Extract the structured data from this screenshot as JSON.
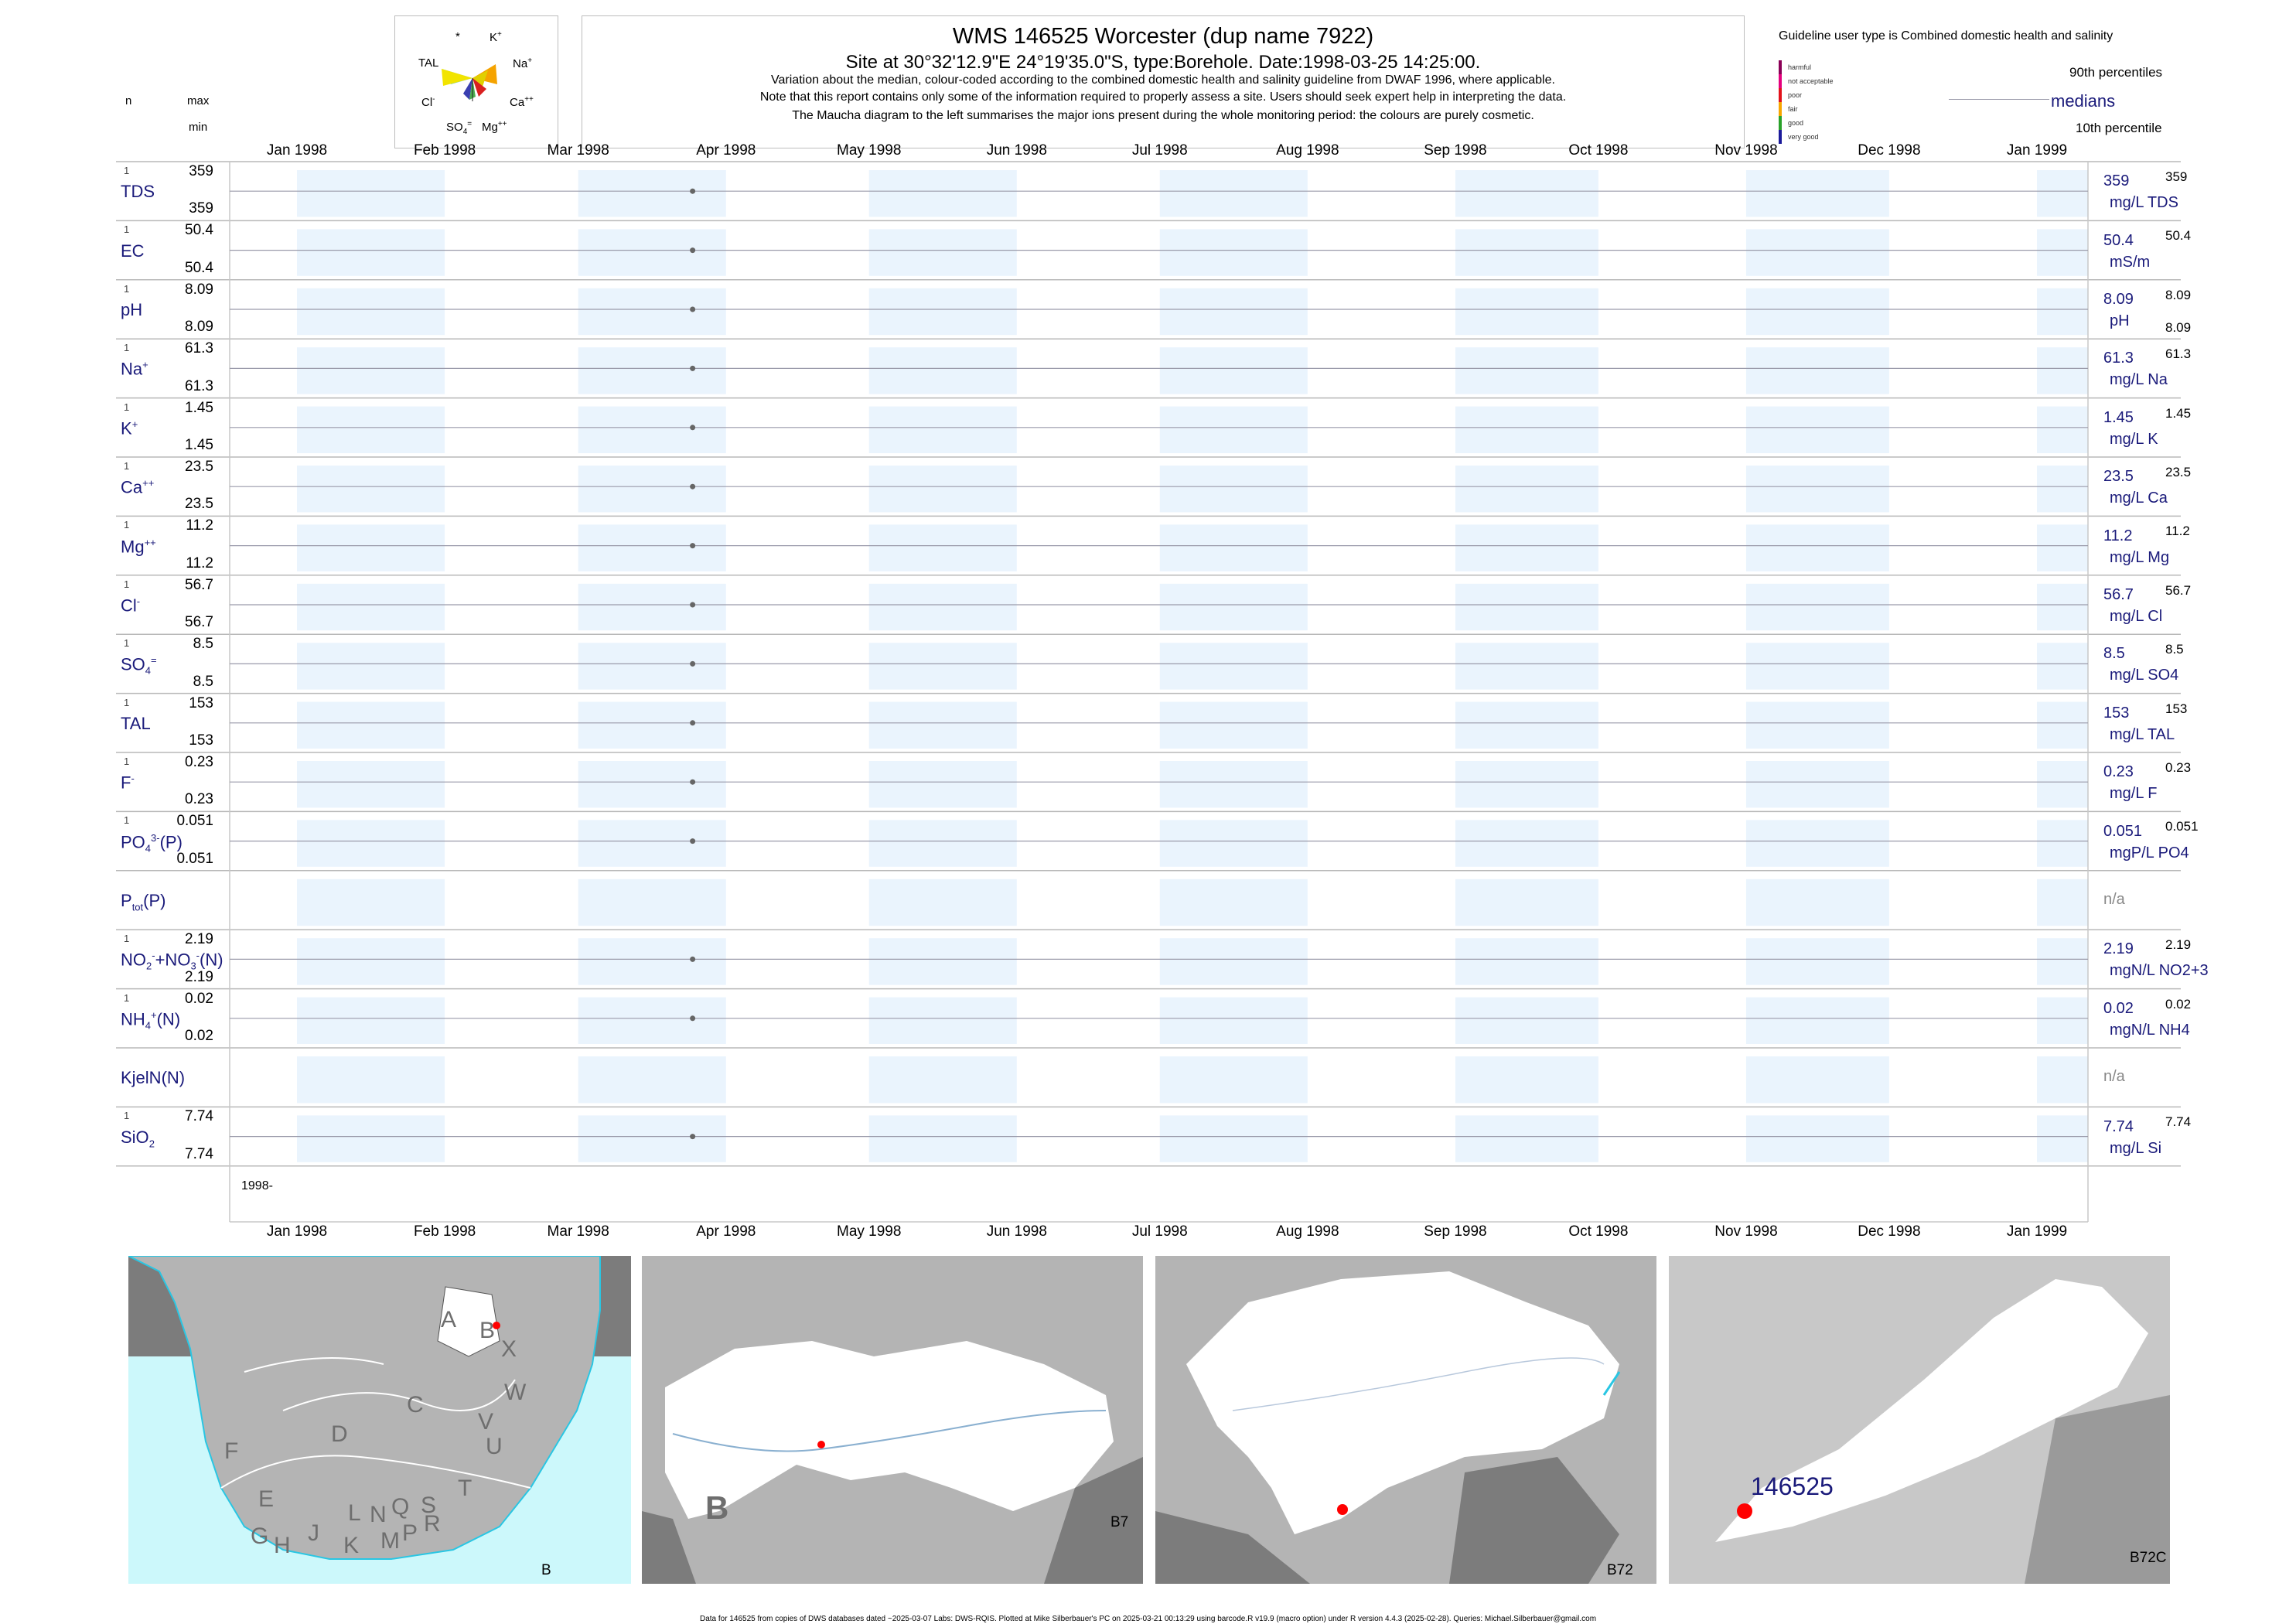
{
  "header": {
    "title": "WMS 146525  Worcester (dup name 7922)",
    "subtitle": "Site at 30°32'12.9\"E 24°19'35.0\"S, type:Borehole. Date:1998-03-25 14:25:00.",
    "note1": "Variation about the median,  colour-coded according to the combined domestic health and salinity guideline from DWAF 1996, where applicable.",
    "note2": "Note that this report contains only some of the information required to properly assess a site. Users should seek expert help in interpreting the data.",
    "note3": "The Maucha diagram to the left summarises the major ions present during the whole monitoring period: the colours are purely cosmetic."
  },
  "left_header": {
    "n": "n",
    "max": "max",
    "min": "min"
  },
  "maucha": {
    "labels": {
      "star": "*",
      "k": "K",
      "tal": "TAL",
      "na": "Na",
      "cl": "Cl",
      "ca": "Ca",
      "so4": "SO",
      "mg": "Mg"
    },
    "colors": [
      "#f2e400",
      "#f5a300",
      "#7ad0a6",
      "#4caf50",
      "#3a3fb0",
      "#d92020",
      "#222222",
      "#e0d000"
    ]
  },
  "legend": {
    "guideline": "Guideline user type is Combined domestic health and salinity",
    "p90": "90th percentiles",
    "medians": "medians",
    "p10": "10th percentile",
    "classes": [
      {
        "label": "harmful",
        "color": "#8b0057"
      },
      {
        "label": "not acceptable",
        "color": "#e5007e"
      },
      {
        "label": "poor",
        "color": "#e3121b"
      },
      {
        "label": "fair",
        "color": "#f7a600"
      },
      {
        "label": "good",
        "color": "#2aa12a"
      },
      {
        "label": "very good",
        "color": "#1b1a9a"
      }
    ]
  },
  "chart_data": {
    "type": "scatter",
    "x_axis_labels": [
      "Jan 1998",
      "Feb 1998",
      "Mar 1998",
      "Apr 1998",
      "May 1998",
      "Jun 1998",
      "Jul 1998",
      "Aug 1998",
      "Sep 1998",
      "Oct 1998",
      "Nov 1998",
      "Dec 1998",
      "Jan 1999"
    ],
    "x_range": [
      "1998-01-01",
      "1999-01-01"
    ],
    "year_label": "1998-",
    "sample_date": "1998-03-25",
    "panels": [
      {
        "name": "TDS",
        "n": "1",
        "max": "359",
        "min": "359",
        "median": "359",
        "unit": "mg/L TDS",
        "right_max": "359",
        "right_min": ""
      },
      {
        "name": "EC",
        "n": "1",
        "max": "50.4",
        "min": "50.4",
        "median": "50.4",
        "unit": "mS/m",
        "right_max": "50.4",
        "right_min": ""
      },
      {
        "name": "pH",
        "n": "1",
        "max": "8.09",
        "min": "8.09",
        "median": "8.09",
        "unit": "pH",
        "right_max": "8.09",
        "right_min": "8.09"
      },
      {
        "name": "Na+",
        "n": "1",
        "max": "61.3",
        "min": "61.3",
        "median": "61.3",
        "unit": "mg/L Na",
        "right_max": "61.3",
        "right_min": ""
      },
      {
        "name": "K+",
        "n": "1",
        "max": "1.45",
        "min": "1.45",
        "median": "1.45",
        "unit": "mg/L K",
        "right_max": "1.45",
        "right_min": ""
      },
      {
        "name": "Ca++",
        "n": "1",
        "max": "23.5",
        "min": "23.5",
        "median": "23.5",
        "unit": "mg/L Ca",
        "right_max": "23.5",
        "right_min": ""
      },
      {
        "name": "Mg++",
        "n": "1",
        "max": "11.2",
        "min": "11.2",
        "median": "11.2",
        "unit": "mg/L Mg",
        "right_max": "11.2",
        "right_min": ""
      },
      {
        "name": "Cl-",
        "n": "1",
        "max": "56.7",
        "min": "56.7",
        "median": "56.7",
        "unit": "mg/L Cl",
        "right_max": "56.7",
        "right_min": ""
      },
      {
        "name": "SO4=",
        "n": "1",
        "max": "8.5",
        "min": "8.5",
        "median": "8.5",
        "unit": "mg/L SO4",
        "right_max": "8.5",
        "right_min": ""
      },
      {
        "name": "TAL",
        "n": "1",
        "max": "153",
        "min": "153",
        "median": "153",
        "unit": "mg/L TAL",
        "right_max": "153",
        "right_min": ""
      },
      {
        "name": "F-",
        "n": "1",
        "max": "0.23",
        "min": "0.23",
        "median": "0.23",
        "unit": "mg/L F",
        "right_max": "0.23",
        "right_min": ""
      },
      {
        "name": "PO4(P)",
        "n": "1",
        "max": "0.051",
        "min": "0.051",
        "median": "0.051",
        "unit": "mgP/L PO4",
        "right_max": "0.051",
        "right_min": ""
      },
      {
        "name": "Ptot(P)",
        "n": "",
        "max": "",
        "min": "",
        "median": "n/a",
        "unit": "",
        "right_max": "",
        "right_min": ""
      },
      {
        "name": "NO2+NO3(N)",
        "n": "1",
        "max": "2.19",
        "min": "2.19",
        "median": "2.19",
        "unit": "mgN/L NO2+3",
        "right_max": "2.19",
        "right_min": ""
      },
      {
        "name": "NH4(N)",
        "n": "1",
        "max": "0.02",
        "min": "0.02",
        "median": "0.02",
        "unit": "mgN/L NH4",
        "right_max": "0.02",
        "right_min": ""
      },
      {
        "name": "KjelN(N)",
        "n": "",
        "max": "",
        "min": "",
        "median": "n/a",
        "unit": "",
        "right_max": "",
        "right_min": ""
      },
      {
        "name": "SiO2",
        "n": "1",
        "max": "7.74",
        "min": "7.74",
        "median": "7.74",
        "unit": "mg/L Si",
        "right_max": "7.74",
        "right_min": ""
      }
    ]
  },
  "maps": {
    "map1_label": "B",
    "map2_label": "B7",
    "map2_big_letter": "B",
    "map3_label": "B72",
    "map4_label": "B72C",
    "site_label": "146525",
    "letters": [
      "A",
      "B",
      "X",
      "W",
      "C",
      "V",
      "U",
      "D",
      "T",
      "F",
      "E",
      "S",
      "R",
      "L",
      "N",
      "Q",
      "G",
      "H",
      "J",
      "K",
      "M",
      "P"
    ],
    "colors": {
      "sea": "#ccf8fb",
      "land": "#b4b4b4",
      "dark": "#7c7c7c",
      "catchment": "#ffffff",
      "site": "#ff0000",
      "river": "#29c6e3"
    }
  },
  "footer": "Data for 146525 from copies of DWS databases dated ~2025-03-07 Labs: DWS-RQIS. Plotted at Mike Silberbauer's PC on 2025-03-21 00:13:29 using barcode.R v19.9 (macro option) under R version 4.4.3 (2025-02-28). Queries: Michael.Silberbauer@gmail.com"
}
